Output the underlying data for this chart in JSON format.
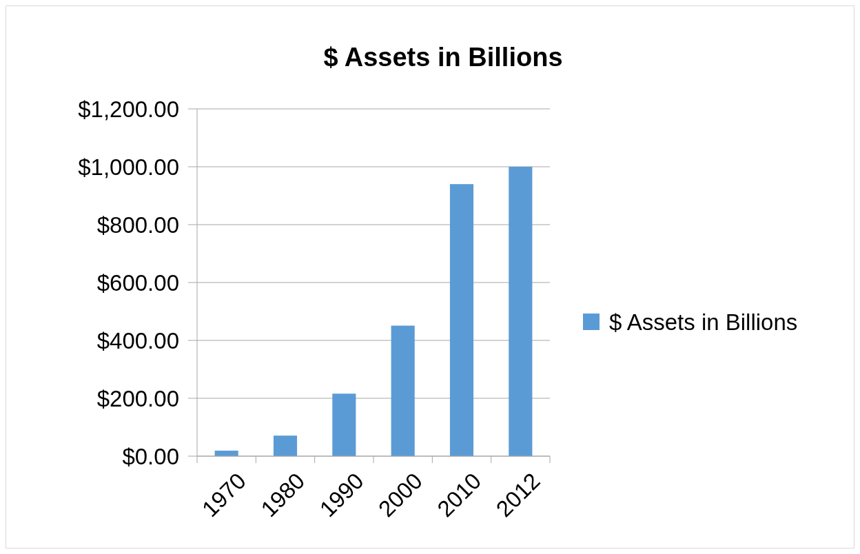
{
  "chart_data": {
    "type": "bar",
    "title": "$ Assets in Billions",
    "categories": [
      "1970",
      "1980",
      "1990",
      "2000",
      "2010",
      "2012"
    ],
    "series": [
      {
        "name": "$ Assets in Billions",
        "color": "#5b9bd5",
        "values": [
          19,
          71,
          216,
          451,
          940,
          1000
        ]
      }
    ],
    "ylim": [
      0,
      1200
    ],
    "yticks": [
      {
        "value": 0,
        "label": "$0.00"
      },
      {
        "value": 200,
        "label": "$200.00"
      },
      {
        "value": 400,
        "label": "$400.00"
      },
      {
        "value": 600,
        "label": "$600.00"
      },
      {
        "value": 800,
        "label": "$800.00"
      },
      {
        "value": 1000,
        "label": "$1,000.00"
      },
      {
        "value": 1200,
        "label": "$1,200.00"
      }
    ],
    "grid": "y",
    "legend": "right"
  }
}
